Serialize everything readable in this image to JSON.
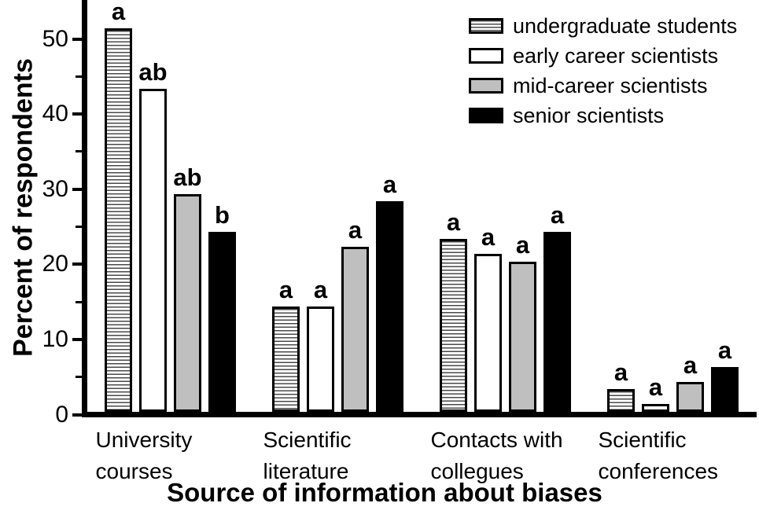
{
  "figure": {
    "background": "#ffffff",
    "text_color": "#000000"
  },
  "chart_data": {
    "type": "bar",
    "title": "",
    "xlabel": "Source of information about biases",
    "ylabel": "Percent of respondents",
    "ylim": [
      0,
      55
    ],
    "yticks": [
      0,
      10,
      20,
      30,
      40,
      50
    ],
    "minor_yticks": [
      5,
      15,
      25,
      35,
      45
    ],
    "grid": false,
    "legend_position": "top-right",
    "categories": [
      "University courses",
      "Scientific literature",
      "Contacts with collegues",
      "Scientific conferences"
    ],
    "series": [
      {
        "name": "undergraduate students",
        "fill": "hatch-horizontal",
        "values": [
          51,
          14,
          23,
          3
        ],
        "sig_letters": [
          "a",
          "a",
          "a",
          "a"
        ]
      },
      {
        "name": "early career scientists",
        "fill": "#ffffff",
        "values": [
          43,
          14,
          21,
          1
        ],
        "sig_letters": [
          "ab",
          "a",
          "a",
          "a"
        ]
      },
      {
        "name": "mid-career scientists",
        "fill": "#bfbfbf",
        "values": [
          29,
          22,
          20,
          4
        ],
        "sig_letters": [
          "ab",
          "a",
          "a",
          "a"
        ]
      },
      {
        "name": "senior scientists",
        "fill": "#000000",
        "values": [
          24,
          28,
          24,
          6
        ],
        "sig_letters": [
          "b",
          "a",
          "a",
          "a"
        ]
      }
    ]
  }
}
